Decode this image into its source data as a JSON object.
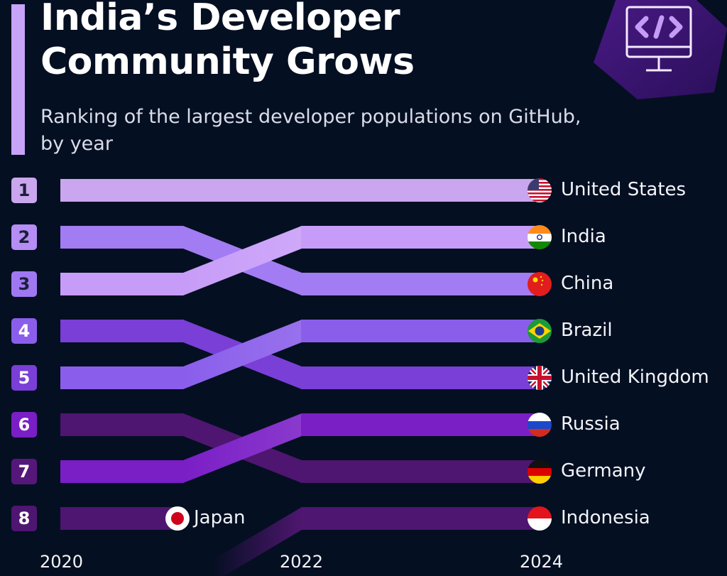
{
  "header": {
    "title_line1": "India’s Developer",
    "title_line2": "Community Grows",
    "subtitle_line1": "Ranking of the largest developer populations on GitHub,",
    "subtitle_line2": "by year",
    "logo_icon": "computer-code-icon"
  },
  "colors": {
    "background": "#050f22",
    "accent": "#c7a4f7"
  },
  "chart_data": {
    "type": "bump",
    "title": "India’s Developer Community Grows",
    "subtitle": "Ranking of the largest developer populations on GitHub, by year",
    "x": [
      "2020",
      "2022",
      "2024"
    ],
    "ranks": [
      "1",
      "2",
      "3",
      "4",
      "5",
      "6",
      "7",
      "8"
    ],
    "series": [
      {
        "name": "United States",
        "flag": "us-flag-icon",
        "color": "#c9a6ee",
        "ranks": [
          1,
          1,
          1
        ]
      },
      {
        "name": "India",
        "flag": "india-flag-icon",
        "color": "#c79cf8",
        "ranks": [
          3,
          2,
          2
        ]
      },
      {
        "name": "China",
        "flag": "china-flag-icon",
        "color": "#a27cf2",
        "ranks": [
          2,
          3,
          3
        ]
      },
      {
        "name": "Brazil",
        "flag": "brazil-flag-icon",
        "color": "#8a5eeb",
        "ranks": [
          5,
          4,
          4
        ]
      },
      {
        "name": "United Kingdom",
        "flag": "uk-flag-icon",
        "color": "#7a3fd6",
        "ranks": [
          4,
          5,
          5
        ]
      },
      {
        "name": "Russia",
        "flag": "russia-flag-icon",
        "color": "#7a1ec6",
        "ranks": [
          7,
          6,
          6
        ]
      },
      {
        "name": "Germany",
        "flag": "germany-flag-icon",
        "color": "#4e1670",
        "ranks": [
          6,
          7,
          7
        ]
      },
      {
        "name": "Indonesia",
        "flag": "indonesia-flag-icon",
        "color": "#4e1670",
        "ranks": [
          null,
          8,
          8
        ],
        "entered_from_below": true
      },
      {
        "name": "Japan",
        "flag": "japan-flag-icon",
        "color": "#4e1670",
        "ranks": [
          8,
          null,
          null
        ],
        "dropped_out": true
      }
    ],
    "badge_colors": [
      "#c9a6ee",
      "#b58df4",
      "#9f78f1",
      "#8a5eeb",
      "#7a3fd6",
      "#7a1ec6",
      "#55187a",
      "#4e1670"
    ],
    "badge_text_colors": [
      "#1b1f3a",
      "#1b1f3a",
      "#1b1f3a",
      "#ffffff",
      "#ffffff",
      "#ffffff",
      "#ffffff",
      "#ffffff"
    ]
  }
}
